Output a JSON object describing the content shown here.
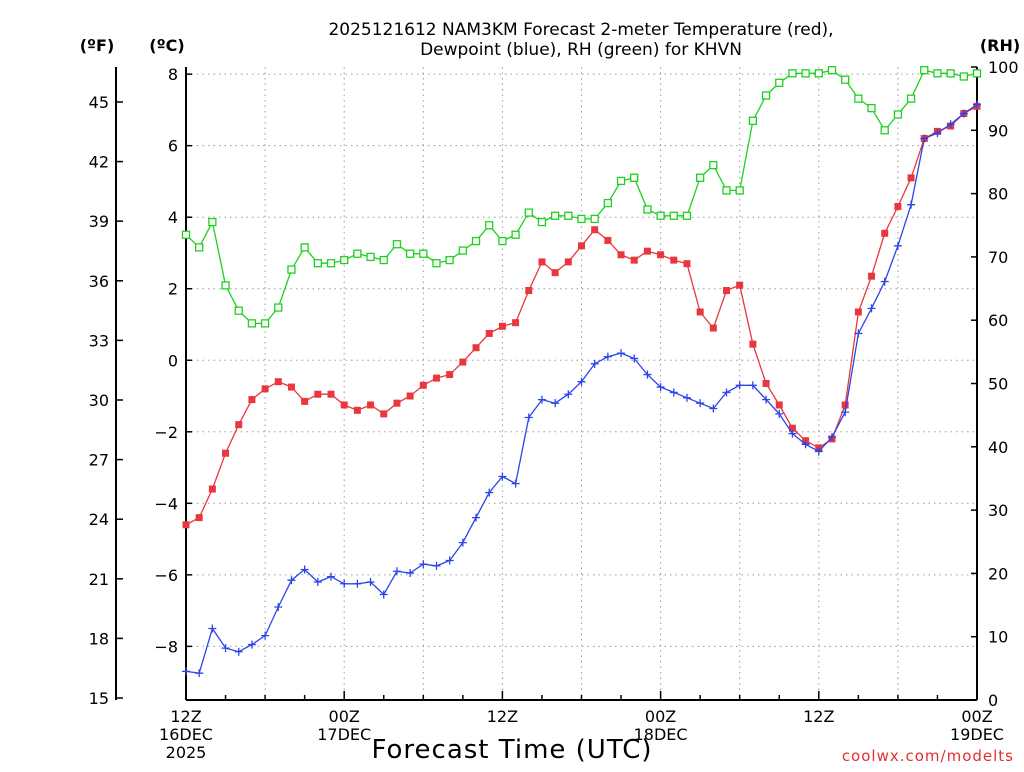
{
  "chart_data": {
    "type": "line",
    "title_lines": [
      "2025121612 NAM3KM Forecast 2-meter Temperature (red),",
      "Dewpoint (blue), RH (green) for KHVN"
    ],
    "xlabel": "Forecast Time (UTC)",
    "credit": "coolwx.com/modelts",
    "x_range_hours": [
      0,
      60
    ],
    "x_ticks": [
      {
        "hour": 0,
        "lines": [
          "12Z",
          "16DEC",
          "2025"
        ]
      },
      {
        "hour": 12,
        "lines": [
          "00Z",
          "17DEC"
        ]
      },
      {
        "hour": 24,
        "lines": [
          "12Z"
        ]
      },
      {
        "hour": 36,
        "lines": [
          "00Z",
          "18DEC"
        ]
      },
      {
        "hour": 48,
        "lines": [
          "12Z"
        ]
      },
      {
        "hour": 60,
        "lines": [
          "00Z",
          "19DEC"
        ]
      }
    ],
    "y_celsius": {
      "label": "(ºC)",
      "range": [
        -9.5,
        8.2
      ],
      "ticks": [
        -8,
        -6,
        -4,
        -2,
        0,
        2,
        4,
        6,
        8
      ],
      "tick_labels": [
        "−8",
        "−6",
        "−4",
        "−2",
        "0",
        "2",
        "4",
        "6",
        "8"
      ]
    },
    "y_fahrenheit": {
      "label": "(ºF)",
      "ticks": [
        15,
        18,
        21,
        24,
        27,
        30,
        33,
        36,
        39,
        42,
        45
      ]
    },
    "y_rh": {
      "label": "(RH)",
      "range": [
        0,
        100
      ],
      "ticks": [
        0,
        10,
        20,
        30,
        40,
        50,
        60,
        70,
        80,
        90,
        100
      ]
    },
    "series": [
      {
        "name": "2-meter Temperature",
        "unit": "C",
        "axis": "celsius",
        "color": "#e8373d",
        "marker": "filled-square",
        "values": [
          -4.6,
          -4.4,
          -3.6,
          -2.6,
          -1.8,
          -1.1,
          -0.8,
          -0.6,
          -0.75,
          -1.15,
          -0.95,
          -0.95,
          -1.25,
          -1.4,
          -1.25,
          -1.5,
          -1.2,
          -1.0,
          -0.7,
          -0.5,
          -0.4,
          -0.05,
          0.35,
          0.75,
          0.95,
          1.05,
          1.95,
          2.75,
          2.45,
          2.75,
          3.2,
          3.65,
          3.35,
          2.95,
          2.8,
          3.05,
          2.95,
          2.8,
          2.7,
          1.35,
          0.9,
          1.95,
          2.1,
          0.45,
          -0.65,
          -1.25,
          -1.9,
          -2.25,
          -2.45,
          -2.2,
          -1.25,
          1.35,
          2.35,
          3.55,
          4.3,
          5.1,
          6.2,
          6.4,
          6.55,
          6.9,
          7.1
        ]
      },
      {
        "name": "Dewpoint",
        "unit": "C",
        "axis": "celsius",
        "color": "#2c45e8",
        "marker": "plus",
        "values": [
          -8.7,
          -8.75,
          -7.5,
          -8.05,
          -8.15,
          -7.95,
          -7.7,
          -6.9,
          -6.15,
          -5.85,
          -6.2,
          -6.05,
          -6.25,
          -6.25,
          -6.2,
          -6.55,
          -5.9,
          -5.95,
          -5.7,
          -5.75,
          -5.6,
          -5.1,
          -4.4,
          -3.7,
          -3.25,
          -3.45,
          -1.6,
          -1.1,
          -1.2,
          -0.95,
          -0.6,
          -0.1,
          0.1,
          0.2,
          0.05,
          -0.4,
          -0.75,
          -0.9,
          -1.05,
          -1.2,
          -1.35,
          -0.9,
          -0.7,
          -0.7,
          -1.1,
          -1.5,
          -2.05,
          -2.35,
          -2.55,
          -2.15,
          -1.45,
          0.75,
          1.45,
          2.2,
          3.2,
          4.35,
          6.2,
          6.35,
          6.6,
          6.9,
          7.15
        ]
      },
      {
        "name": "RH",
        "unit": "%",
        "axis": "rh",
        "color": "#1ed11e",
        "marker": "open-square",
        "values": [
          73.5,
          71.5,
          75.5,
          65.5,
          61.5,
          59.5,
          59.5,
          62.0,
          68.0,
          71.5,
          69.0,
          69.0,
          69.5,
          70.5,
          70.0,
          69.5,
          72.0,
          70.5,
          70.5,
          69.0,
          69.5,
          71.0,
          72.5,
          75.0,
          72.5,
          73.5,
          77.0,
          75.5,
          76.5,
          76.5,
          76.0,
          76.0,
          78.5,
          82.0,
          82.5,
          77.5,
          76.5,
          76.5,
          76.5,
          82.5,
          84.5,
          80.5,
          80.5,
          91.5,
          95.5,
          97.5,
          99.0,
          99.0,
          99.0,
          99.5,
          98.0,
          95.0,
          93.5,
          90.0,
          92.5,
          95.0,
          99.5,
          99.0,
          99.0,
          98.5,
          99.0
        ]
      }
    ]
  }
}
